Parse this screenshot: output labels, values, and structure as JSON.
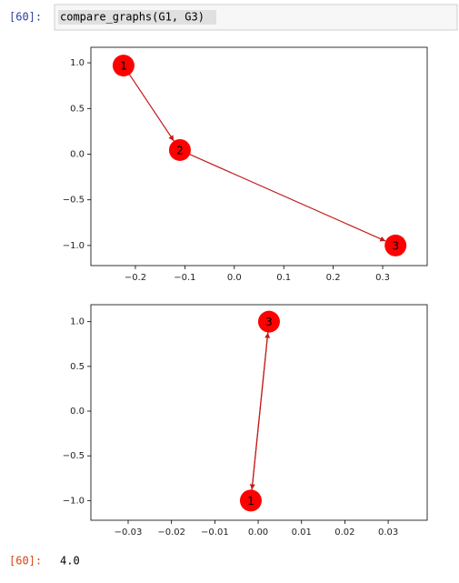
{
  "input_cell": {
    "prompt": "[60]:",
    "code": "compare_graphs(G1, G3)"
  },
  "chart_data": [
    {
      "type": "network",
      "nodes": [
        {
          "label": "1",
          "x": -0.224,
          "y": 0.97
        },
        {
          "label": "2",
          "x": -0.11,
          "y": 0.045
        },
        {
          "label": "3",
          "x": 0.326,
          "y": -1.0
        }
      ],
      "edges": [
        [
          "1",
          "2"
        ],
        [
          "2",
          "3"
        ]
      ],
      "node_color": "#ff0000",
      "edge_color": "#c41a1a",
      "xlim": [
        -0.29,
        0.39
      ],
      "ylim": [
        -1.22,
        1.17
      ],
      "xticks": [
        {
          "value": -0.2,
          "label": "−0.2"
        },
        {
          "value": -0.1,
          "label": "−0.1"
        },
        {
          "value": 0,
          "label": "0.0"
        },
        {
          "value": 0.1,
          "label": "0.1"
        },
        {
          "value": 0.2,
          "label": "0.2"
        },
        {
          "value": 0.3,
          "label": "0.3"
        }
      ],
      "yticks": [
        {
          "value": 1,
          "label": "1.0"
        },
        {
          "value": 0.5,
          "label": "0.5"
        },
        {
          "value": 0,
          "label": "0.0"
        },
        {
          "value": -0.5,
          "label": "−0.5"
        },
        {
          "value": -1,
          "label": "−1.0"
        }
      ]
    },
    {
      "type": "network",
      "nodes": [
        {
          "label": "1",
          "x": -0.0017,
          "y": -1.0
        },
        {
          "label": "3",
          "x": 0.0025,
          "y": 1.0
        }
      ],
      "edges": [
        [
          "1",
          "3"
        ],
        [
          "3",
          "1"
        ]
      ],
      "node_color": "#ff0000",
      "edge_color": "#c41a1a",
      "xlim": [
        -0.0386,
        0.039
      ],
      "ylim": [
        -1.22,
        1.19
      ],
      "xticks": [
        {
          "value": -0.03,
          "label": "−0.03"
        },
        {
          "value": -0.02,
          "label": "−0.02"
        },
        {
          "value": -0.01,
          "label": "−0.01"
        },
        {
          "value": 0,
          "label": "0.00"
        },
        {
          "value": 0.01,
          "label": "0.01"
        },
        {
          "value": 0.02,
          "label": "0.02"
        },
        {
          "value": 0.03,
          "label": "0.03"
        }
      ],
      "yticks": [
        {
          "value": 1,
          "label": "1.0"
        },
        {
          "value": 0.5,
          "label": "0.5"
        },
        {
          "value": 0,
          "label": "0.0"
        },
        {
          "value": -0.5,
          "label": "−0.5"
        },
        {
          "value": -1,
          "label": "−1.0"
        }
      ]
    }
  ],
  "output_cell": {
    "prompt": "[60]:",
    "text": "4.0"
  }
}
